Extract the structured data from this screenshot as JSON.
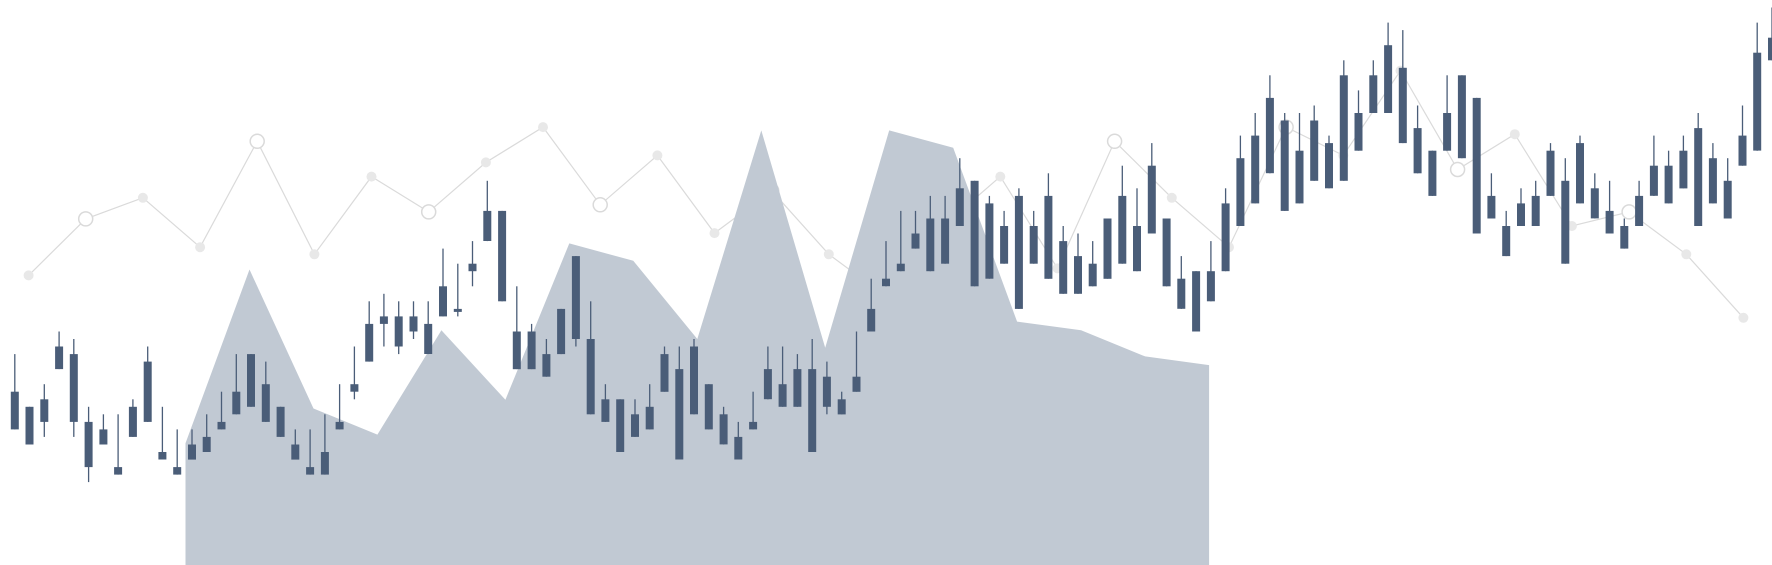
{
  "chart_data": [
    {
      "type": "area",
      "x": [
        0,
        1,
        2,
        3,
        4,
        5,
        6,
        7,
        8,
        9,
        10,
        11,
        12,
        13,
        14,
        15,
        16
      ],
      "values": [
        14,
        34,
        18,
        15,
        27,
        19,
        37,
        35,
        26,
        50,
        25,
        50,
        48,
        28,
        27,
        24,
        23
      ],
      "xlim": [
        -2.9,
        24.8
      ],
      "ylim": [
        0,
        65
      ]
    },
    {
      "type": "line",
      "x": [
        0,
        1,
        2,
        3,
        4,
        5,
        6,
        7,
        8,
        9,
        10,
        11,
        12,
        13,
        14,
        15,
        16,
        17,
        18,
        19,
        20,
        21,
        22,
        23,
        24,
        25,
        26,
        27,
        28,
        29,
        30
      ],
      "values": [
        41,
        49,
        52,
        45,
        60,
        44,
        55,
        50,
        57,
        62,
        51,
        58,
        47,
        53,
        44,
        38,
        48,
        55,
        42,
        60,
        52,
        45,
        62,
        58,
        70,
        56,
        61,
        48,
        50,
        44,
        35
      ],
      "xlim": [
        -0.5,
        30.5
      ],
      "ylim": [
        0,
        80
      ]
    },
    {
      "type": "candlestick",
      "ohlc": [
        [
          28,
          33,
          26,
          23
        ],
        [
          26,
          23,
          22,
          21
        ],
        [
          24,
          29,
          22,
          27
        ],
        [
          34,
          36,
          31,
          31
        ],
        [
          33,
          35,
          22,
          24
        ],
        [
          24,
          26,
          16,
          18
        ],
        [
          23,
          25,
          21,
          21
        ],
        [
          18,
          25,
          19,
          17
        ],
        [
          26,
          27,
          23,
          22
        ],
        [
          32,
          34,
          25,
          24
        ],
        [
          20,
          26,
          21,
          19
        ],
        [
          18,
          23,
          17,
          17
        ],
        [
          21,
          23,
          21,
          19
        ],
        [
          22,
          25,
          21,
          20
        ],
        [
          24,
          28,
          23,
          23
        ],
        [
          28,
          33,
          26,
          25
        ],
        [
          33,
          33,
          28,
          26
        ],
        [
          29,
          32,
          28,
          24
        ],
        [
          26,
          24,
          25,
          22
        ],
        [
          21,
          23,
          20,
          19
        ],
        [
          18,
          23,
          17,
          17
        ],
        [
          20,
          25,
          19,
          17
        ],
        [
          24,
          29,
          23,
          23
        ],
        [
          29,
          34,
          27,
          28
        ],
        [
          32,
          40,
          34,
          37
        ],
        [
          37,
          41,
          34,
          38
        ],
        [
          34,
          40,
          33,
          38
        ],
        [
          38,
          40,
          35,
          36
        ],
        [
          33,
          40,
          34,
          37
        ],
        [
          38,
          47,
          39,
          42
        ],
        [
          39,
          45,
          38,
          39
        ],
        [
          44,
          48,
          42,
          45
        ],
        [
          48,
          56,
          48,
          52
        ],
        [
          52,
          52,
          45,
          40
        ],
        [
          36,
          42,
          34,
          31
        ],
        [
          36,
          37,
          33,
          31
        ],
        [
          33,
          35,
          33,
          30
        ],
        [
          39,
          37,
          34,
          33
        ],
        [
          46,
          37,
          34,
          35
        ],
        [
          35,
          40,
          27,
          25
        ],
        [
          27,
          29,
          26,
          24
        ],
        [
          27,
          26,
          21,
          20
        ],
        [
          25,
          27,
          24,
          22
        ],
        [
          26,
          29,
          26,
          23
        ],
        [
          33,
          34,
          29,
          28
        ],
        [
          31,
          34,
          21,
          19
        ],
        [
          34,
          35,
          27,
          25
        ],
        [
          29,
          29,
          24,
          23
        ],
        [
          25,
          26,
          24,
          21
        ],
        [
          22,
          24,
          21,
          19
        ],
        [
          24,
          28,
          25,
          23
        ],
        [
          31,
          34,
          28,
          27
        ],
        [
          29,
          34,
          27,
          26
        ],
        [
          31,
          33,
          28,
          26
        ],
        [
          31,
          35,
          21,
          20
        ],
        [
          30,
          32,
          25,
          26
        ],
        [
          27,
          28,
          25,
          25
        ],
        [
          30,
          36,
          31,
          28
        ],
        [
          39,
          42,
          43,
          36
        ],
        [
          43,
          48,
          44,
          42
        ],
        [
          44,
          52,
          49,
          45
        ],
        [
          49,
          52,
          51,
          47
        ],
        [
          51,
          54,
          47,
          44
        ],
        [
          51,
          54,
          49,
          45
        ],
        [
          55,
          59,
          55,
          50
        ],
        [
          56,
          54,
          47,
          42
        ],
        [
          53,
          54,
          49,
          43
        ],
        [
          50,
          52,
          49,
          45
        ],
        [
          54,
          55,
          44,
          39
        ],
        [
          50,
          52,
          47,
          45
        ],
        [
          54,
          57,
          46,
          43
        ],
        [
          48,
          50,
          46,
          41
        ],
        [
          46,
          49,
          44,
          41
        ],
        [
          45,
          48,
          47,
          42
        ],
        [
          51,
          50,
          47,
          43
        ],
        [
          54,
          58,
          51,
          45
        ],
        [
          50,
          55,
          49,
          44
        ],
        [
          58,
          61,
          52,
          49
        ],
        [
          51,
          49,
          43,
          42
        ],
        [
          43,
          46,
          42,
          39
        ],
        [
          44,
          44,
          38,
          36
        ],
        [
          44,
          48,
          45,
          40
        ],
        [
          53,
          55,
          49,
          44
        ],
        [
          59,
          62,
          53,
          50
        ],
        [
          62,
          65,
          56,
          53
        ],
        [
          67,
          70,
          60,
          57
        ],
        [
          64,
          65,
          54,
          52
        ],
        [
          60,
          65,
          58,
          53
        ],
        [
          64,
          66,
          61,
          56
        ],
        [
          61,
          62,
          58,
          55
        ],
        [
          70,
          72,
          60,
          56
        ],
        [
          65,
          68,
          63,
          60
        ],
        [
          70,
          72,
          67,
          65
        ],
        [
          74,
          77,
          67,
          65
        ],
        [
          71,
          76,
          64,
          61
        ],
        [
          63,
          66,
          62,
          57
        ],
        [
          60,
          60,
          56,
          54
        ],
        [
          65,
          70,
          64,
          60
        ],
        [
          70,
          68,
          60,
          59
        ],
        [
          67,
          66,
          55,
          49
        ],
        [
          54,
          57,
          55,
          51
        ],
        [
          50,
          52,
          49,
          46
        ],
        [
          53,
          55,
          52,
          50
        ],
        [
          54,
          56,
          54,
          50
        ],
        [
          60,
          61,
          56,
          54
        ],
        [
          56,
          59,
          48,
          45
        ],
        [
          61,
          62,
          55,
          53
        ],
        [
          55,
          57,
          53,
          51
        ],
        [
          52,
          56,
          50,
          49
        ],
        [
          50,
          51,
          48,
          47
        ],
        [
          54,
          56,
          52,
          50
        ],
        [
          58,
          62,
          56,
          54
        ],
        [
          58,
          60,
          55,
          53
        ],
        [
          60,
          62,
          57,
          55
        ],
        [
          63,
          65,
          55,
          50
        ],
        [
          59,
          61,
          55,
          53
        ],
        [
          56,
          59,
          52,
          51
        ],
        [
          62,
          66,
          60,
          58
        ],
        [
          73,
          77,
          64,
          60
        ],
        [
          75,
          79,
          74,
          72
        ]
      ],
      "xlim": [
        -1,
        119
      ],
      "ylim": [
        5,
        80
      ]
    }
  ],
  "colors": {
    "candle": "#4a5d78",
    "area_fill": "#c1c9d3",
    "background_line": "#dadada",
    "background_dot": "#e8e8e8"
  }
}
